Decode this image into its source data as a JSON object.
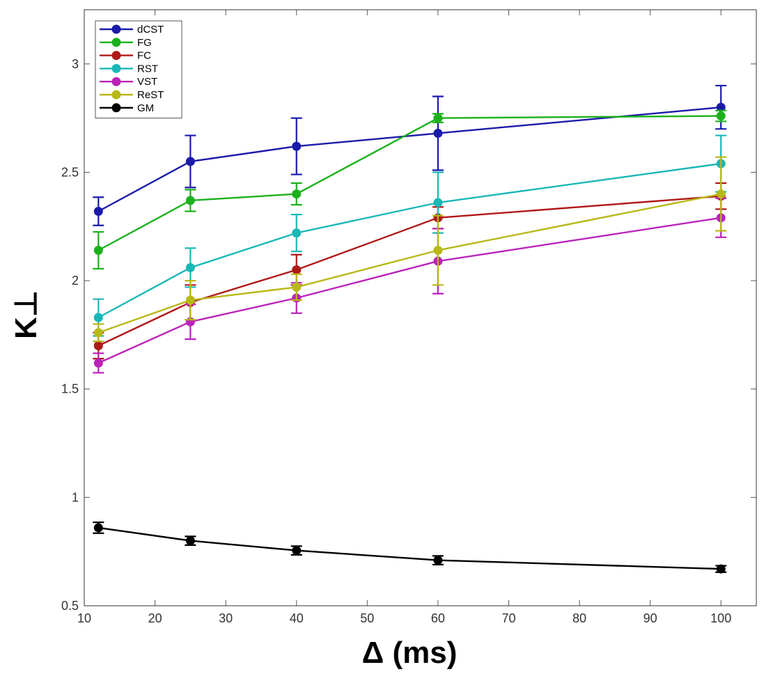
{
  "chart_data": {
    "type": "line",
    "title": "",
    "xlabel": "Δ (ms)",
    "ylabel": "K⊥",
    "xlim": [
      10,
      105
    ],
    "ylim": [
      0.5,
      3.25
    ],
    "xticks": [
      10,
      20,
      30,
      40,
      50,
      60,
      70,
      80,
      90,
      100
    ],
    "yticks": [
      0.5,
      1,
      1.5,
      2,
      2.5,
      3
    ],
    "xtick_labels": [
      "10",
      "20",
      "30",
      "40",
      "50",
      "60",
      "70",
      "80",
      "90",
      "100"
    ],
    "ytick_labels": [
      "0.5",
      "1",
      "1.5",
      "2",
      "2.5",
      "3"
    ],
    "x": [
      12,
      25,
      40,
      60,
      100
    ],
    "legend_position": "top-left",
    "grid": false,
    "series": [
      {
        "name": "dCST",
        "color": "#1a1aaa",
        "values": [
          2.32,
          2.55,
          2.62,
          2.68,
          2.8
        ],
        "errors": [
          0.065,
          0.12,
          0.13,
          0.17,
          0.1
        ]
      },
      {
        "name": "FG",
        "color": "#1bb11b",
        "values": [
          2.14,
          2.37,
          2.4,
          2.75,
          2.76
        ],
        "errors": [
          0.085,
          0.05,
          0.05,
          0.02,
          0.025
        ]
      },
      {
        "name": "FC",
        "color": "#b01818",
        "values": [
          1.7,
          1.9,
          2.05,
          2.29,
          2.39
        ],
        "errors": [
          0.06,
          0.08,
          0.07,
          0.05,
          0.06
        ]
      },
      {
        "name": "RST",
        "color": "#1ab7b7",
        "values": [
          1.83,
          2.06,
          2.22,
          2.36,
          2.54
        ],
        "errors": [
          0.085,
          0.09,
          0.085,
          0.14,
          0.13
        ]
      },
      {
        "name": "VST",
        "color": "#bb22bb",
        "values": [
          1.62,
          1.81,
          1.92,
          2.09,
          2.29
        ],
        "errors": [
          0.045,
          0.08,
          0.07,
          0.15,
          0.09
        ]
      },
      {
        "name": "ReST",
        "color": "#b8b818",
        "values": [
          1.76,
          1.91,
          1.97,
          2.14,
          2.4
        ],
        "errors": [
          0.04,
          0.09,
          0.06,
          0.16,
          0.17
        ]
      },
      {
        "name": "GM",
        "color": "#000000",
        "values": [
          0.86,
          0.8,
          0.755,
          0.71,
          0.67
        ],
        "errors": [
          0.025,
          0.02,
          0.02,
          0.02,
          0.015
        ]
      }
    ]
  }
}
